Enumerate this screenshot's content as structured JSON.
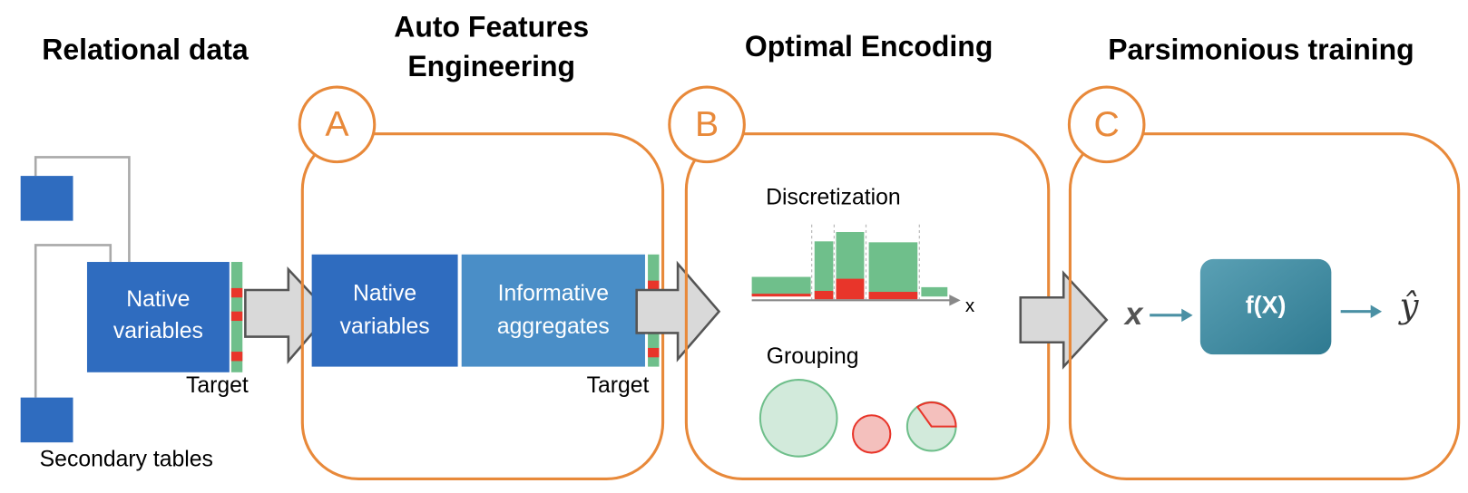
{
  "columns": [
    {
      "title": "Relational data",
      "native": [
        "Native",
        "variables"
      ],
      "target": "Target",
      "secondary": "Secondary tables"
    },
    {
      "title": [
        "Auto Features",
        "Engineering"
      ],
      "badge": "A",
      "native": [
        "Native",
        "variables"
      ],
      "aggregates": [
        "Informative",
        "aggregates"
      ],
      "target": "Target"
    },
    {
      "title": "Optimal Encoding",
      "badge": "B",
      "discretization": "Discretization",
      "axis": "x",
      "grouping": "Grouping"
    },
    {
      "title": "Parsimonious training",
      "badge": "C",
      "input": "x",
      "model": "f(X)",
      "output": "ŷ"
    }
  ]
}
